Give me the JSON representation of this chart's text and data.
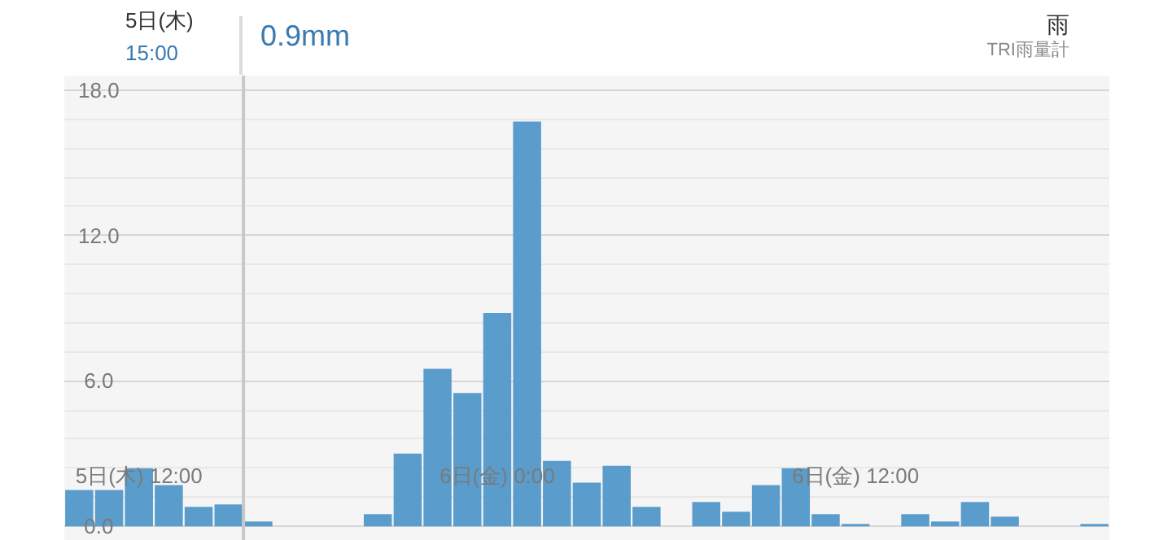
{
  "chart_data": {
    "type": "bar",
    "title": "0.9mm",
    "annotations": [
      "5日(木)",
      "15:00",
      "雨",
      "TRI雨量計"
    ],
    "categories": [
      null,
      null,
      "5日(木) 12:00",
      null,
      null,
      null,
      null,
      null,
      null,
      null,
      null,
      null,
      null,
      null,
      "6日(金) 0:00",
      null,
      null,
      null,
      null,
      null,
      null,
      null,
      null,
      null,
      null,
      null,
      "6日(金) 12:00",
      null,
      null,
      null,
      null,
      null,
      null,
      null,
      null
    ],
    "values": [
      1.5,
      1.5,
      2.4,
      1.7,
      0.8,
      0.9,
      0.2,
      0,
      0,
      0,
      0.5,
      3.0,
      6.5,
      5.5,
      8.8,
      16.7,
      2.7,
      1.8,
      2.5,
      0.8,
      0,
      1.0,
      0.6,
      1.7,
      2.4,
      0.5,
      0.1,
      0,
      0.5,
      0.2,
      1.0,
      0.4,
      0,
      0,
      0.1
    ],
    "color": "#5a9ccb",
    "ylim": [
      -0.6,
      18.6
    ],
    "yticks": [
      {
        "value": 0,
        "label": "0.0"
      },
      {
        "value": 6,
        "label": "6.0"
      },
      {
        "value": 12,
        "label": "12.0"
      },
      {
        "value": 18,
        "label": "18.0"
      }
    ],
    "grid": "y"
  }
}
